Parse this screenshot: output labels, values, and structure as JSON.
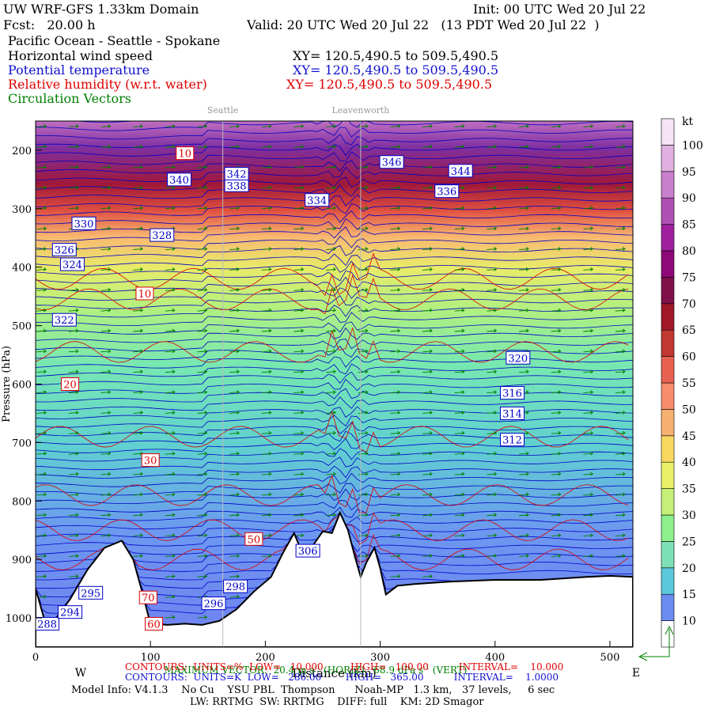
{
  "header": {
    "model": "UW WRF-GFS 1.33km Domain",
    "init": "Init: 00 UTC Wed 20 Jul 22",
    "fcst": "Fcst:   20.00 h",
    "valid": "Valid: 20 UTC Wed 20 Jul 22   (13 PDT Wed 20 Jul 22  )",
    "region": "Pacific Ocean - Seattle - Spokane",
    "field1": "Horizontal wind speed",
    "xy1": "XY= 120.5,490.5 to 509.5,490.5",
    "field2": "Potential temperature",
    "xy2": "XY= 120.5,490.5 to 509.5,490.5",
    "field3": "Relative humidity (w.r.t. water)",
    "xy3": "XY= 120.5,490.5 to 509.5,490.5",
    "field4": "Circulation Vectors"
  },
  "chart_data": {
    "type": "heatmap",
    "xlabel": "Distance (km)",
    "ylabel": "Pressure (hPa)",
    "xlim": [
      0,
      520
    ],
    "ylim": [
      1050,
      150
    ],
    "x_ticks": [
      0,
      100,
      200,
      300,
      400,
      500
    ],
    "y_ticks": [
      200,
      300,
      400,
      500,
      600,
      700,
      800,
      900,
      1000
    ],
    "x_direction_labels": {
      "left": "W",
      "right": "E"
    },
    "locations": [
      {
        "name": "Seattle",
        "x": 163
      },
      {
        "name": "Leavenworth",
        "x": 283
      }
    ],
    "colorbar": {
      "unit": "kt",
      "levels": [
        10,
        15,
        20,
        25,
        30,
        35,
        40,
        45,
        50,
        55,
        60,
        65,
        70,
        75,
        80,
        85,
        90,
        95,
        100
      ],
      "colors": [
        "#6b8cf0",
        "#5cc8dc",
        "#7ee0b8",
        "#8cf08c",
        "#c4f078",
        "#e8f068",
        "#f8d860",
        "#f8b070",
        "#f88c6c",
        "#e86050",
        "#c03830",
        "#a01828",
        "#80104a",
        "#900878",
        "#a020a0",
        "#b050b4",
        "#c880cc",
        "#e0b0e0",
        "#f4e4f4"
      ]
    },
    "theta_contour_labels": [
      288,
      294,
      295,
      296,
      298,
      306,
      312,
      314,
      316,
      320,
      322,
      324,
      326,
      328,
      330,
      334,
      336,
      338,
      340,
      342,
      344,
      346
    ],
    "rh_contour_labels": [
      10,
      20,
      30,
      50,
      60,
      70
    ],
    "theta_contours": {
      "units": "K",
      "low": 286.0,
      "high": 365.0,
      "interval": 1.0
    },
    "rh_contours": {
      "units": "%",
      "low": 10.0,
      "high": 100.0,
      "interval": 10.0
    },
    "max_vector": {
      "horiz": "20.4 m s",
      "vert": "68.9 dPa s"
    }
  },
  "footer": {
    "maxvec": "MAXIMUM VECTOR:  20.4 m s",
    "maxvec_h": "(HORIZ)",
    "maxvec_v": "68.9 dPa s",
    "maxvec_v2": "(VERT)",
    "sup": "-1",
    "rh_line": "CONTOURS:  UNITS=%  LOW=   10.000         HIGH=   100.00          INTERVAL=    10.000",
    "th_line": "CONTOURS:  UNITS=K  LOW=   286.00        HIGH=   365.00          INTERVAL=    1.0000",
    "model_info": "Model Info: V4.1.3    No Cu    YSU PBL  Thompson      Noah-MP   1.3 km,   37 levels,     6 sec",
    "model_info2": "LW: RRTMG  SW: RRTMG    DIFF: full    KM: 2D Smagor"
  },
  "colors": {
    "theta": "#0000c8",
    "rh": "#e00000",
    "vector": "#008000",
    "terrain": "#ffffff"
  }
}
